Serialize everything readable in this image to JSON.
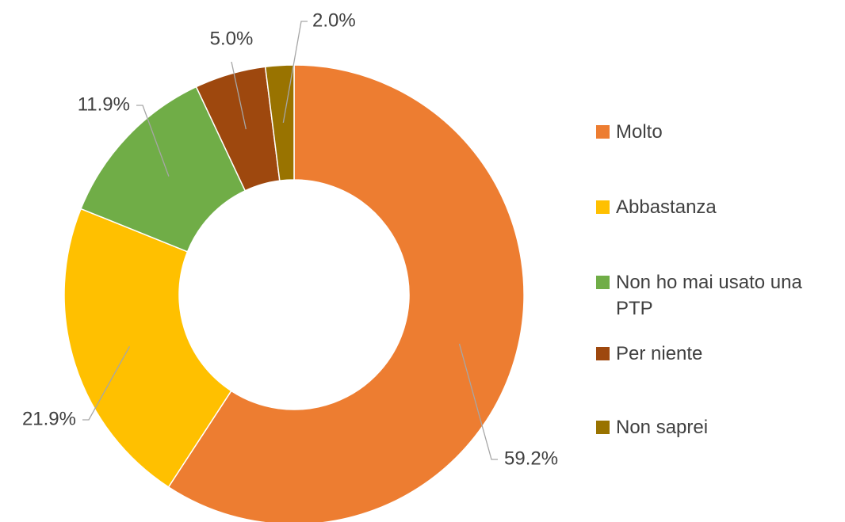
{
  "chart_data": {
    "type": "donut",
    "categories": [
      "Molto",
      "Abbastanza",
      "Non ho mai usato una PTP",
      "Per niente",
      "Non saprei"
    ],
    "values": [
      59.2,
      21.9,
      11.9,
      5.0,
      2.0
    ],
    "value_labels": [
      "59.2%",
      "21.9%",
      "11.9%",
      "5.0%",
      "2.0%"
    ],
    "colors": [
      "#ed7d31",
      "#ffc000",
      "#70ad47",
      "#9e480e",
      "#997300"
    ],
    "legend": "right"
  }
}
